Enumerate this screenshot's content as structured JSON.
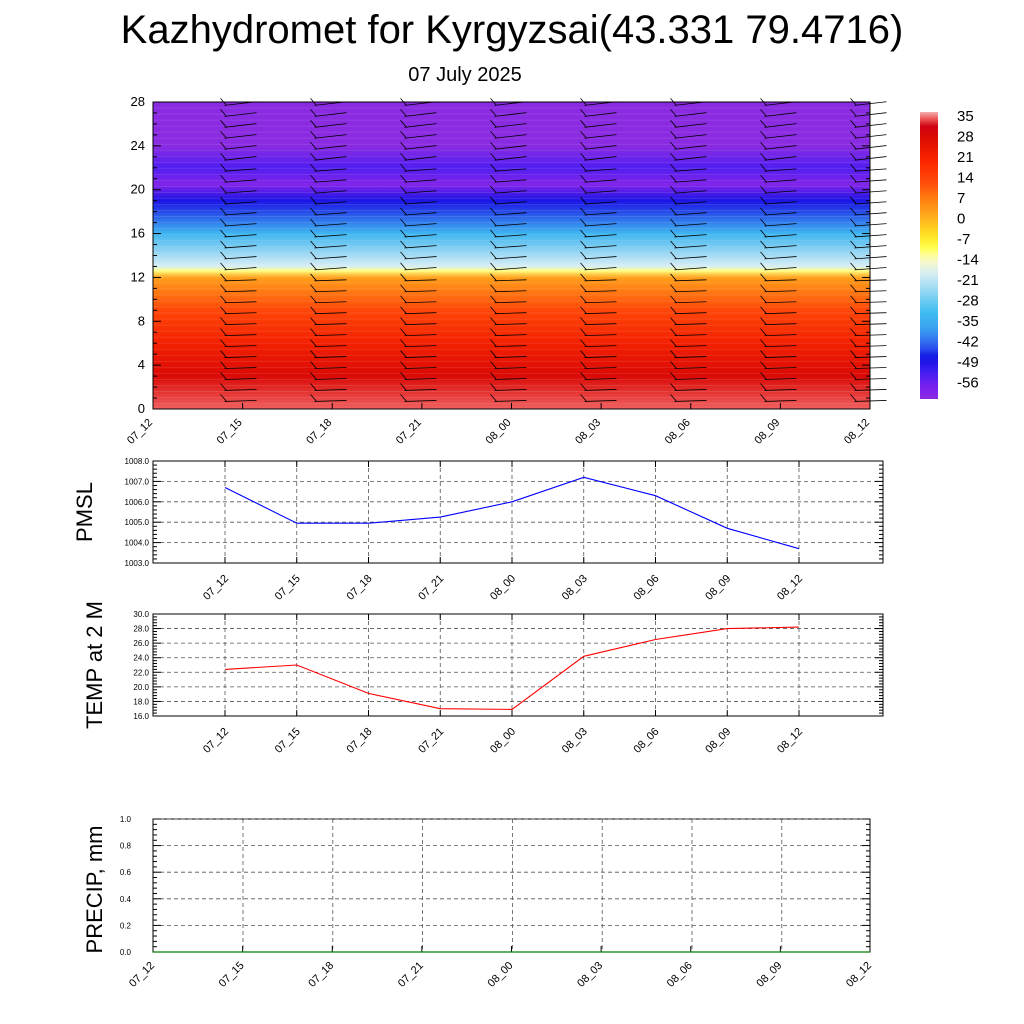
{
  "title": "Kazhydromet for Kyrgyzsai(43.331 79.4716)",
  "subtitle": "07 July 2025",
  "chart_data": [
    {
      "type": "heatmap",
      "ylim": [
        0,
        28
      ],
      "yticks": [
        "0",
        "4",
        "8",
        "12",
        "16",
        "20",
        "24",
        "28"
      ],
      "xticks": [
        "07_12",
        "07_15",
        "07_18",
        "07_21",
        "08_00",
        "08_03",
        "08_06",
        "08_09",
        "08_12"
      ],
      "colorbar": {
        "labels": [
          "35",
          "28",
          "21",
          "14",
          "7",
          "0",
          "-7",
          "-14",
          "-21",
          "-28",
          "-35",
          "-42",
          "-49",
          "-56"
        ],
        "range": [
          -60,
          38
        ]
      },
      "level_temperatures": [
        [
          0,
          36
        ],
        [
          3,
          30
        ],
        [
          6,
          23
        ],
        [
          9,
          15
        ],
        [
          12,
          4
        ],
        [
          12.6,
          -10
        ],
        [
          13,
          -17
        ],
        [
          16,
          -32
        ],
        [
          19,
          -47
        ],
        [
          20.5,
          -58
        ],
        [
          22,
          -52
        ],
        [
          24,
          -63
        ],
        [
          28,
          -62
        ]
      ]
    },
    {
      "type": "line",
      "ylabel": "PMSL",
      "ylim": [
        1003.0,
        1008.0
      ],
      "yticks": [
        "1003.0",
        "1004.0",
        "1005.0",
        "1006.0",
        "1007.0",
        "1008.0"
      ],
      "categories": [
        "07_12",
        "07_15",
        "07_18",
        "07_21",
        "08_00",
        "08_03",
        "08_06",
        "08_09",
        "08_12"
      ],
      "values": [
        1006.7,
        1004.95,
        1004.95,
        1005.25,
        1006.0,
        1007.2,
        1006.3,
        1004.7,
        1003.7
      ],
      "color": "#0000ff"
    },
    {
      "type": "line",
      "ylabel": "TEMP at 2 M",
      "ylim": [
        16.0,
        30.0
      ],
      "yticks": [
        "16.0",
        "18.0",
        "20.0",
        "22.0",
        "24.0",
        "26.0",
        "28.0",
        "30.0"
      ],
      "categories": [
        "07_12",
        "07_15",
        "07_18",
        "07_21",
        "08_00",
        "08_03",
        "08_06",
        "08_09",
        "08_12"
      ],
      "values": [
        22.4,
        23.0,
        19.1,
        17.0,
        16.9,
        24.2,
        26.5,
        28.0,
        28.2
      ],
      "color": "#ff0000"
    },
    {
      "type": "line",
      "ylabel": "PRECIP, mm",
      "ylim": [
        0.0,
        1.0
      ],
      "yticks": [
        "0.0",
        "0.2",
        "0.4",
        "0.6",
        "0.8",
        "1.0"
      ],
      "xticks": [
        "07_12",
        "07_15",
        "07_18",
        "07_21",
        "08_00",
        "08_03",
        "08_06",
        "08_09",
        "08_12"
      ],
      "values": [
        0,
        0,
        0,
        0,
        0,
        0,
        0,
        0,
        0
      ],
      "color": "#008000"
    }
  ]
}
